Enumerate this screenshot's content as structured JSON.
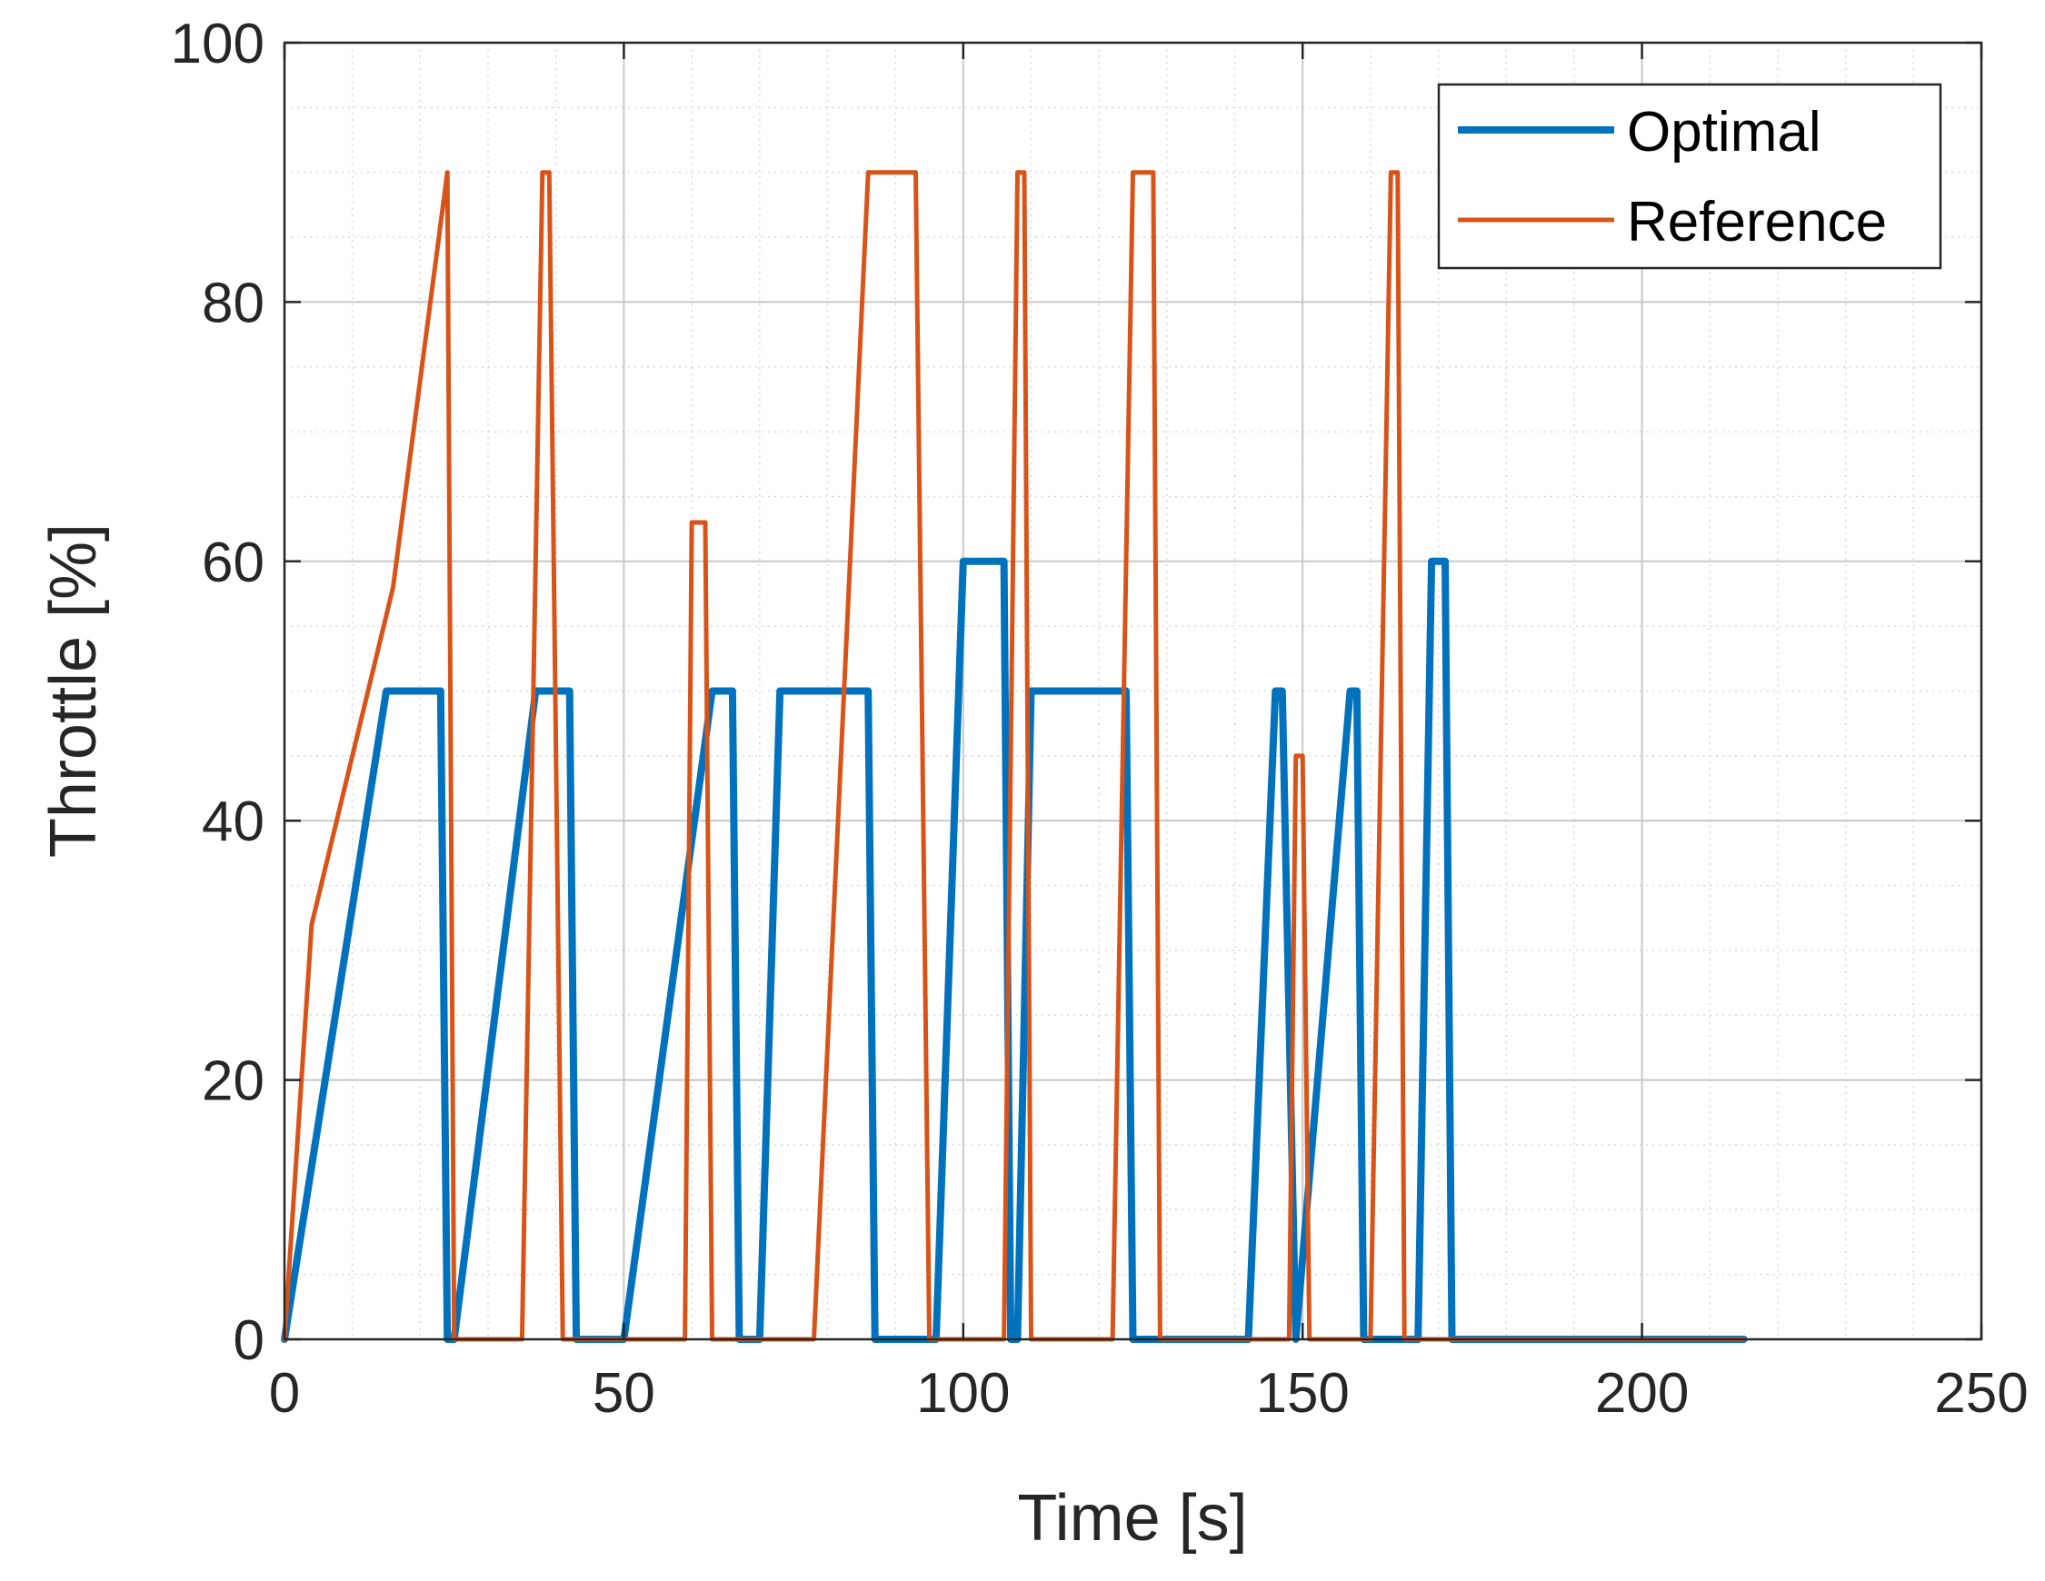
{
  "chart_data": {
    "type": "line",
    "xlabel": "Time [s]",
    "ylabel": "Throttle [%]",
    "xlim": [
      0,
      250
    ],
    "ylim": [
      0,
      100
    ],
    "xticks": [
      0,
      50,
      100,
      150,
      200,
      250
    ],
    "yticks": [
      0,
      20,
      40,
      60,
      80,
      100
    ],
    "xtick_labels": [
      "0",
      "50",
      "100",
      "150",
      "200",
      "250"
    ],
    "ytick_labels": [
      "0",
      "20",
      "40",
      "60",
      "80",
      "100"
    ],
    "grid": true,
    "minor_grid": true,
    "legend_position": "top-right",
    "series": [
      {
        "name": "Optimal",
        "color": "#0072BD",
        "x": [
          0,
          15,
          23,
          24,
          25,
          37,
          42,
          43,
          50,
          63,
          66,
          67,
          70,
          73,
          86,
          87,
          96,
          100,
          106,
          107,
          108,
          110,
          124,
          125,
          142,
          146,
          147,
          149,
          157,
          158,
          159,
          167,
          169,
          171,
          172,
          215
        ],
        "y": [
          0,
          50,
          50,
          0,
          0,
          50,
          50,
          0,
          0,
          50,
          50,
          0,
          0,
          50,
          50,
          0,
          0,
          60,
          60,
          0,
          0,
          50,
          50,
          0,
          0,
          50,
          50,
          0,
          50,
          50,
          0,
          0,
          60,
          60,
          0,
          0
        ]
      },
      {
        "name": "Reference",
        "color": "#D95319",
        "x": [
          0,
          4,
          16,
          24,
          25,
          35,
          38,
          39,
          41,
          48,
          59,
          60,
          62,
          63,
          78,
          86,
          93,
          95,
          106,
          108,
          109,
          110,
          122,
          125,
          128,
          129,
          148,
          149,
          150,
          151,
          160,
          163,
          164,
          165,
          215
        ],
        "y": [
          0,
          32,
          58,
          90,
          0,
          0,
          90,
          90,
          0,
          0,
          0,
          63,
          63,
          0,
          0,
          90,
          90,
          0,
          0,
          90,
          90,
          0,
          0,
          90,
          90,
          0,
          0,
          45,
          45,
          0,
          0,
          90,
          90,
          0,
          0
        ]
      }
    ]
  }
}
